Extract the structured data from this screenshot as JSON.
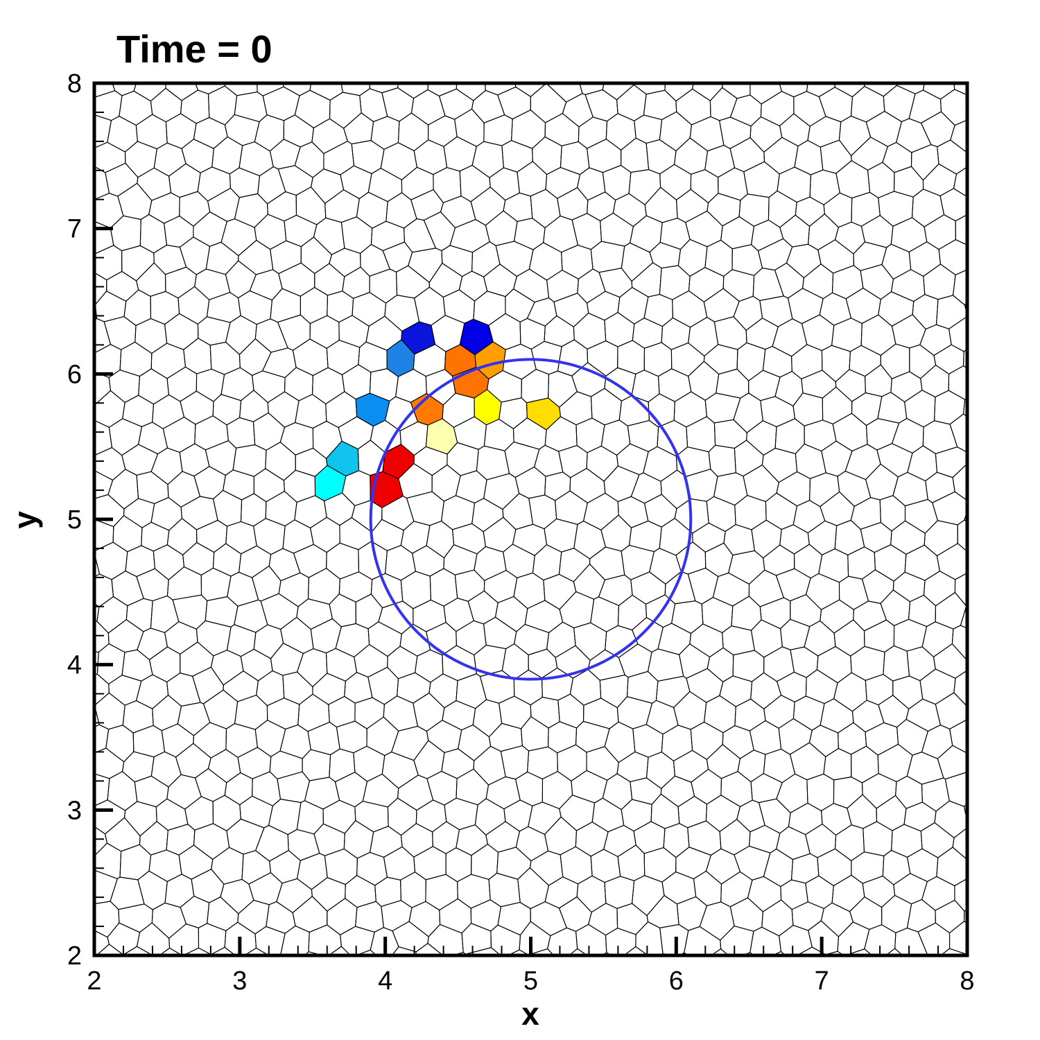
{
  "title": "Time = 0",
  "axes": {
    "xlabel": "x",
    "ylabel": "y",
    "xlim": [
      2,
      8
    ],
    "ylim": [
      2,
      8
    ],
    "x_ticks": [
      "2",
      "3",
      "4",
      "5",
      "6",
      "7",
      "8"
    ],
    "y_ticks": [
      "2",
      "3",
      "4",
      "5",
      "6",
      "7",
      "8"
    ]
  },
  "mesh": {
    "type": "polygonal (Voronoi-like) cells",
    "line_color": "#000000",
    "nominal_cell_size": 0.2
  },
  "circle": {
    "center": [
      5.0,
      5.0
    ],
    "radius": 1.1,
    "color": "#3333ee"
  },
  "highlighted_cells": [
    {
      "center": [
        4.62,
        6.35
      ],
      "color": "#0000e6"
    },
    {
      "center": [
        4.25,
        6.21
      ],
      "color": "#0a14dc"
    },
    {
      "center": [
        4.07,
        6.0
      ],
      "color": "#1e82e6"
    },
    {
      "center": [
        4.46,
        6.02
      ],
      "color": "#ff7300"
    },
    {
      "center": [
        4.75,
        6.07
      ],
      "color": "#ff9f00"
    },
    {
      "center": [
        3.88,
        5.75
      ],
      "color": "#0a8ff0"
    },
    {
      "center": [
        4.27,
        5.74
      ],
      "color": "#ff7a00"
    },
    {
      "center": [
        4.6,
        5.85
      ],
      "color": "#ff7300"
    },
    {
      "center": [
        4.75,
        5.73
      ],
      "color": "#ffff00"
    },
    {
      "center": [
        5.02,
        5.78
      ],
      "color": "#ffdd00"
    },
    {
      "center": [
        3.72,
        5.45
      ],
      "color": "#10c4ef"
    },
    {
      "center": [
        4.05,
        5.45
      ],
      "color": "#ee0000"
    },
    {
      "center": [
        4.43,
        5.53
      ],
      "color": "#ffffb0"
    },
    {
      "center": [
        3.62,
        5.15
      ],
      "color": "#00ffff"
    },
    {
      "center": [
        3.95,
        5.13
      ],
      "color": "#ee0000"
    }
  ]
}
